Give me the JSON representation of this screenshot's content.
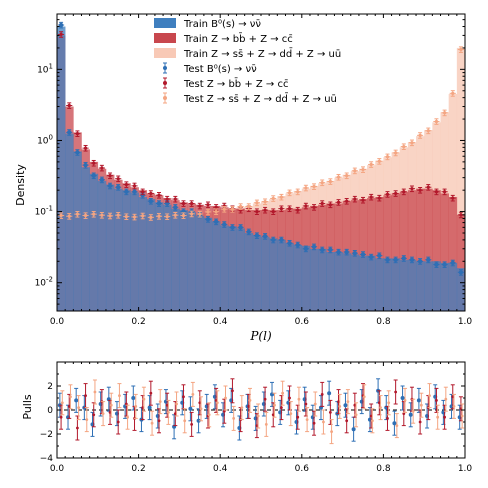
{
  "chart_data": [
    {
      "type": "bar",
      "title": "",
      "xlabel": "P(l)",
      "ylabel": "Density",
      "xlim": [
        0,
        1
      ],
      "ylim": [
        0.004,
        60
      ],
      "yscale": "log",
      "xticks": [
        "0.0",
        "0.2",
        "0.4",
        "0.6",
        "0.8",
        "1.0"
      ],
      "yticks": [
        {
          "value": 0.01,
          "label": "10^-2"
        },
        {
          "value": 0.1,
          "label": "10^-1"
        },
        {
          "value": 1,
          "label": "10^0"
        },
        {
          "value": 10,
          "label": "10^1"
        }
      ],
      "legend": {
        "placement": "top-center",
        "entries": [
          {
            "text": "Train B⁰(s) → νν̄",
            "kind": "hist",
            "color": "#3f7fbf"
          },
          {
            "text": "Train Z → bb̄ + Z → cc̄",
            "kind": "hist",
            "color": "#c8474e"
          },
          {
            "text": "Train Z → ss̄ + Z → dd̄ + Z → uū",
            "kind": "hist",
            "color": "#f8c9b6"
          },
          {
            "text": "Test B⁰(s) → νν̄",
            "kind": "errorbar",
            "color": "#2e6fb5"
          },
          {
            "text": "Test Z → bb̄ + Z → cc̄",
            "kind": "errorbar",
            "color": "#b2182b"
          },
          {
            "text": "Test Z → ss̄ + Z → dd̄ + Z → uū",
            "kind": "errorbar",
            "color": "#f4a582"
          }
        ]
      },
      "bins": 50,
      "series": [
        {
          "name": "Train B⁰(s) → νν̄",
          "style": "train",
          "color": "#3f7fbf",
          "values": [
            40,
            1.25,
            0.7,
            0.42,
            0.34,
            0.27,
            0.24,
            0.21,
            0.2,
            0.185,
            0.16,
            0.15,
            0.135,
            0.125,
            0.11,
            0.105,
            0.098,
            0.087,
            0.082,
            0.073,
            0.064,
            0.062,
            0.058,
            0.05,
            0.047,
            0.044,
            0.042,
            0.04,
            0.036,
            0.034,
            0.033,
            0.03,
            0.03,
            0.027,
            0.027,
            0.026,
            0.025,
            0.024,
            0.024,
            0.022,
            0.022,
            0.022,
            0.021,
            0.021,
            0.02,
            0.02,
            0.02,
            0.019,
            0.019,
            0.016
          ]
        },
        {
          "name": "Train Z → bb̄ + Z → cc̄",
          "style": "train",
          "color": "#c8474e",
          "values": [
            30,
            3.0,
            1.3,
            0.75,
            0.5,
            0.4,
            0.33,
            0.28,
            0.25,
            0.22,
            0.2,
            0.18,
            0.17,
            0.155,
            0.145,
            0.135,
            0.13,
            0.125,
            0.12,
            0.12,
            0.115,
            0.11,
            0.11,
            0.105,
            0.105,
            0.105,
            0.105,
            0.105,
            0.11,
            0.11,
            0.115,
            0.12,
            0.125,
            0.13,
            0.13,
            0.14,
            0.145,
            0.15,
            0.155,
            0.16,
            0.17,
            0.18,
            0.19,
            0.2,
            0.21,
            0.21,
            0.2,
            0.18,
            0.16,
            0.09
          ]
        },
        {
          "name": "Train Z → ss̄ + Z → dd̄ + Z → uū",
          "style": "train",
          "color": "#f8c9b6",
          "values": [
            0.085,
            0.088,
            0.09,
            0.09,
            0.09,
            0.09,
            0.088,
            0.087,
            0.086,
            0.085,
            0.085,
            0.085,
            0.085,
            0.086,
            0.087,
            0.089,
            0.091,
            0.094,
            0.097,
            0.101,
            0.105,
            0.11,
            0.115,
            0.12,
            0.13,
            0.14,
            0.15,
            0.165,
            0.18,
            0.195,
            0.21,
            0.23,
            0.25,
            0.27,
            0.3,
            0.33,
            0.37,
            0.4,
            0.45,
            0.52,
            0.58,
            0.68,
            0.8,
            0.95,
            1.15,
            1.4,
            1.8,
            2.5,
            4.5,
            20
          ]
        },
        {
          "name": "Test B⁰(s) → νν̄",
          "style": "test",
          "color": "#2e6fb5",
          "values": [
            42,
            1.3,
            0.68,
            0.45,
            0.32,
            0.28,
            0.23,
            0.22,
            0.19,
            0.19,
            0.17,
            0.14,
            0.13,
            0.13,
            0.115,
            0.1,
            0.1,
            0.09,
            0.078,
            0.072,
            0.066,
            0.06,
            0.06,
            0.052,
            0.046,
            0.045,
            0.04,
            0.04,
            0.036,
            0.034,
            0.03,
            0.032,
            0.029,
            0.029,
            0.027,
            0.027,
            0.026,
            0.025,
            0.023,
            0.024,
            0.021,
            0.021,
            0.022,
            0.021,
            0.02,
            0.021,
            0.018,
            0.018,
            0.019,
            0.014
          ]
        },
        {
          "name": "Test Z → bb̄ + Z → cc̄",
          "style": "test",
          "color": "#b2182b",
          "values": [
            31,
            3.1,
            1.25,
            0.78,
            0.48,
            0.41,
            0.32,
            0.29,
            0.24,
            0.23,
            0.19,
            0.18,
            0.17,
            0.15,
            0.15,
            0.13,
            0.13,
            0.12,
            0.125,
            0.115,
            0.12,
            0.11,
            0.105,
            0.11,
            0.1,
            0.105,
            0.1,
            0.11,
            0.11,
            0.105,
            0.12,
            0.115,
            0.13,
            0.125,
            0.135,
            0.14,
            0.15,
            0.145,
            0.16,
            0.155,
            0.175,
            0.18,
            0.19,
            0.21,
            0.2,
            0.22,
            0.19,
            0.19,
            0.155,
            0.09
          ]
        },
        {
          "name": "Test Z → ss̄ + Z → dd̄ + Z → uū",
          "style": "test",
          "color": "#f4a582",
          "values": [
            0.088,
            0.086,
            0.092,
            0.088,
            0.092,
            0.089,
            0.087,
            0.089,
            0.085,
            0.084,
            0.087,
            0.083,
            0.086,
            0.085,
            0.089,
            0.088,
            0.093,
            0.092,
            0.099,
            0.1,
            0.108,
            0.108,
            0.118,
            0.118,
            0.133,
            0.138,
            0.153,
            0.16,
            0.184,
            0.19,
            0.215,
            0.225,
            0.255,
            0.265,
            0.305,
            0.32,
            0.375,
            0.39,
            0.46,
            0.51,
            0.59,
            0.67,
            0.82,
            0.93,
            1.18,
            1.37,
            1.85,
            2.45,
            4.6,
            19
          ]
        }
      ]
    },
    {
      "type": "scatter",
      "title": "",
      "xlabel": "",
      "ylabel": "Pulls",
      "xlim": [
        0,
        1
      ],
      "ylim": [
        -4,
        4
      ],
      "xticks": [
        "0.0",
        "0.2",
        "0.4",
        "0.6",
        "0.8",
        "1.0"
      ],
      "yticks": [
        "−4",
        "−2",
        "0",
        "2"
      ],
      "reference_line": {
        "y": 0,
        "style": "dashed"
      },
      "series": [
        {
          "name": "Test B⁰(s) → νν̄",
          "color": "#2e6fb5",
          "values": [
            0.4,
            -0.6,
            0.8,
            0.2,
            -1.2,
            0.5,
            0.9,
            -0.3,
            0.3,
            1.0,
            -0.8,
            0.2,
            -0.5,
            0.7,
            -1.4,
            0.6,
            0.1,
            -0.9,
            0.3,
            1.1,
            -0.4,
            0.8,
            -1.5,
            0.3,
            -0.7,
            0.5,
            1.3,
            -0.2,
            0.6,
            -1.0,
            0.9,
            -0.6,
            0.2,
            1.4,
            -0.3,
            0.4,
            -1.6,
            0.7,
            -0.8,
            1.6,
            0.2,
            -1.1,
            1.0,
            -0.4,
            0.8,
            -0.5,
            1.1,
            -0.2,
            0.3,
            -0.6
          ]
        },
        {
          "name": "Test Z → bb̄ + Z → cc̄",
          "color": "#b2182b",
          "values": [
            -0.6,
            0.3,
            -1.5,
            1.2,
            -0.4,
            0.7,
            -0.2,
            -1.0,
            0.5,
            -0.7,
            0.2,
            1.4,
            -0.9,
            0.4,
            -0.3,
            1.1,
            -1.2,
            0.6,
            -0.5,
            0.8,
            -0.1,
            1.6,
            -0.8,
            0.3,
            -1.3,
            0.9,
            -0.4,
            0.2,
            1.0,
            -0.6,
            0.5,
            -1.1,
            1.3,
            -0.2,
            0.7,
            -0.9,
            0.4,
            1.2,
            -0.5,
            0.6,
            -0.7,
            1.5,
            -0.3,
            0.9,
            -1.0,
            0.2,
            0.8,
            -0.6,
            1.1,
            0.1
          ]
        },
        {
          "name": "Test Z → ss̄ + Z → dd̄ + Z → uū",
          "color": "#f4a582",
          "values": [
            0.6,
            1.1,
            0.2,
            -0.8,
            1.5,
            -0.3,
            0.4,
            1.2,
            -0.6,
            0.3,
            0.9,
            -1.1,
            0.7,
            -0.2,
            0.5,
            -0.9,
            1.3,
            0.1,
            -0.4,
            0.6,
            1.0,
            -0.7,
            0.2,
            0.8,
            -0.5,
            -1.2,
            0.4,
            1.4,
            -0.3,
            0.9,
            -0.8,
            0.5,
            -1.0,
            -1.8,
            0.3,
            0.7,
            -0.4,
            1.1,
            -0.9,
            0.2,
            0.6,
            -1.3,
            0.8,
            -0.1,
            0.4,
            1.2,
            -0.6,
            0.9,
            0.3,
            -0.5
          ]
        }
      ]
    }
  ]
}
